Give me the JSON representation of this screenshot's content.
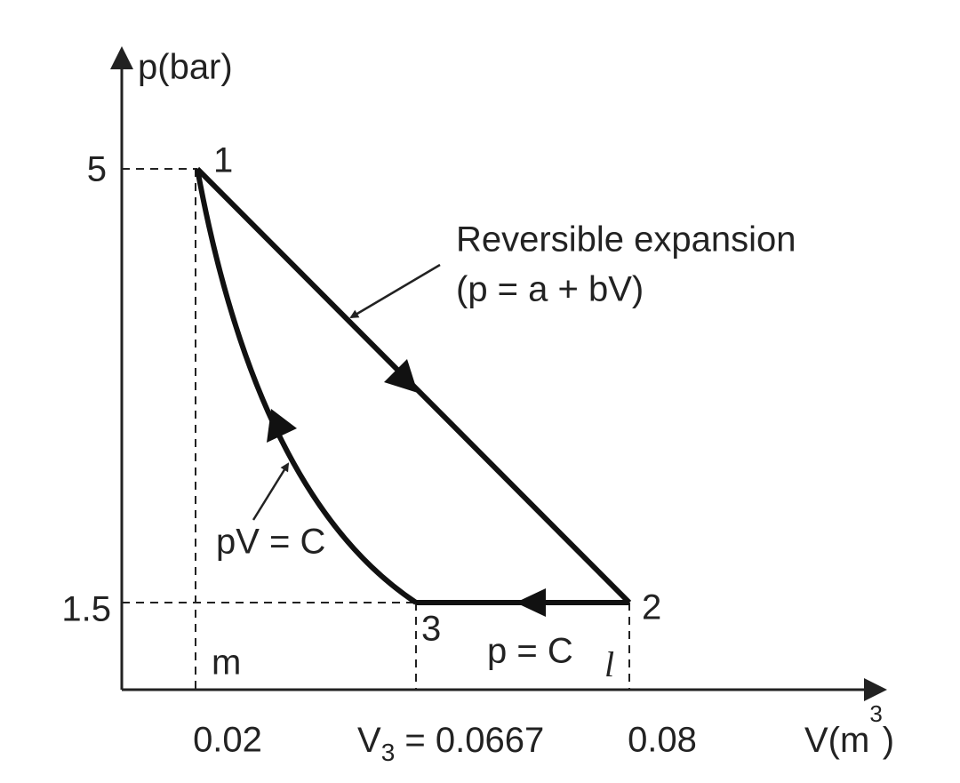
{
  "axes": {
    "y_label": "p(bar)",
    "x_label": {
      "base": "V(m",
      "sup": "3",
      "end": ")"
    }
  },
  "y_ticks": [
    "5",
    "1.5"
  ],
  "x_ticks": {
    "first": "0.02",
    "middle": {
      "base": "V",
      "sub": "3",
      "rest": " = 0.0667"
    },
    "last": "0.08"
  },
  "points": [
    "1",
    "2",
    "3"
  ],
  "annotations": {
    "expansion": [
      "Reversible expansion",
      "(p = a + bV)"
    ],
    "isothermal": "pV = C",
    "isobaric": "p = C",
    "area_left": "m",
    "area_right": "l"
  }
}
